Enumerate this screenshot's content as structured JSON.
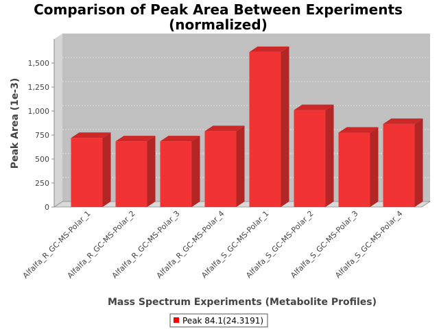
{
  "chart_data": {
    "type": "bar",
    "title": "Comparison of Peak Area Between Experiments (normalized)",
    "title_lines": [
      "Comparison of Peak Area Between Experiments",
      "(normalized)"
    ],
    "xlabel": "Mass Spectrum Experiments (Metabolite Profiles)",
    "ylabel": "Peak Area (1e-3)",
    "ylim": [
      0,
      1750
    ],
    "yticks": [
      0,
      250,
      500,
      750,
      1000,
      1250,
      1500
    ],
    "ytick_labels": [
      "0",
      "250",
      "500",
      "750",
      "1,000",
      "1,250",
      "1,500"
    ],
    "categories": [
      "Alfalfa_R_GC-MS-Polar_1",
      "Alfalfa_R_GC-MS-Polar_2",
      "Alfalfa_R_GC-MS-Polar_3",
      "Alfalfa_R_GC-MS-Polar_4",
      "Alfalfa_S_GC-MS-Polar_1",
      "Alfalfa_S_GC-MS-Polar_2",
      "Alfalfa_S_GC-MS-Polar_3",
      "Alfalfa_S_GC-MS-Polar_4"
    ],
    "series": [
      {
        "name": "Peak 84.1(24.3191)",
        "color": "#ff0000",
        "values": [
          720,
          685,
          685,
          790,
          1615,
          1010,
          775,
          865
        ]
      }
    ],
    "grid": true,
    "legend_position": "bottom"
  },
  "colors": {
    "plot_background": "#c0c0c0",
    "bar_front": "#f23333",
    "bar_side": "#b32626",
    "bar_top": "#cc2828"
  }
}
